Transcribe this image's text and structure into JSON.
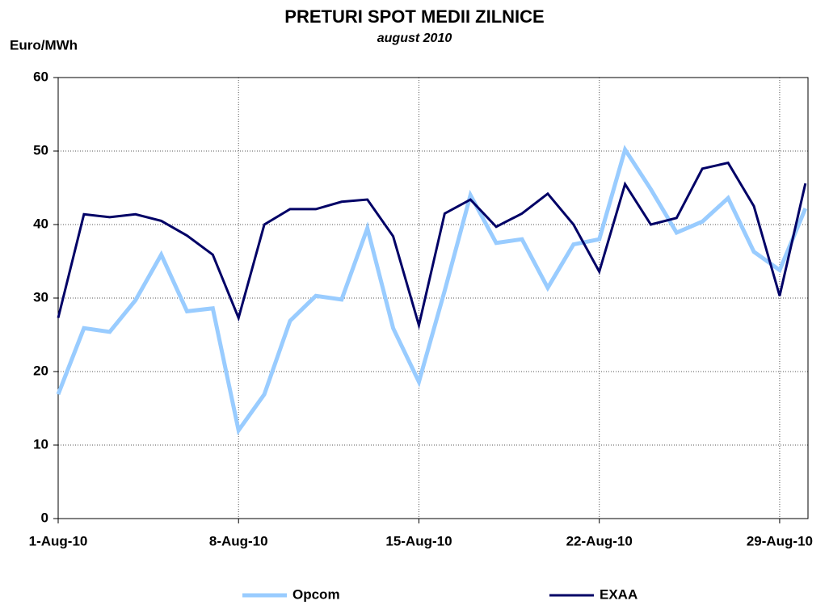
{
  "chart_data": {
    "type": "line",
    "title": "PRETURI SPOT MEDII ZILNICE",
    "subtitle": "august 2010",
    "y_label": "Euro/MWh",
    "categories": [
      "1-Aug-10",
      null,
      null,
      null,
      null,
      null,
      null,
      "8-Aug-10",
      null,
      null,
      null,
      null,
      null,
      null,
      "15-Aug-10",
      null,
      null,
      null,
      null,
      null,
      null,
      "22-Aug-10",
      null,
      null,
      null,
      null,
      null,
      null,
      "29-Aug-10",
      null
    ],
    "series": [
      {
        "name": "Opcom",
        "color": "#99ccff",
        "values": [
          16.9,
          25.9,
          25.4,
          29.7,
          35.9,
          28.2,
          28.6,
          12.0,
          16.9,
          26.9,
          30.3,
          29.8,
          39.5,
          25.9,
          18.6,
          31.0,
          44.0,
          37.5,
          38.0,
          31.4,
          37.3,
          38.0,
          50.2,
          44.8,
          38.9,
          40.4,
          43.6,
          36.3,
          33.8,
          42.2
        ]
      },
      {
        "name": "EXAA",
        "color": "#000066",
        "values": [
          27.3,
          41.4,
          41.0,
          41.4,
          40.5,
          38.5,
          35.9,
          27.3,
          40.0,
          42.1,
          42.1,
          43.1,
          43.4,
          38.4,
          26.3,
          41.5,
          43.4,
          39.7,
          41.5,
          44.2,
          40.0,
          33.6,
          45.5,
          40.0,
          40.9,
          47.6,
          48.4,
          42.5,
          30.3,
          45.6
        ]
      }
    ],
    "ylim": [
      0,
      60
    ],
    "yticks": [
      0,
      10,
      20,
      30,
      40,
      50,
      60
    ],
    "grid": true
  }
}
